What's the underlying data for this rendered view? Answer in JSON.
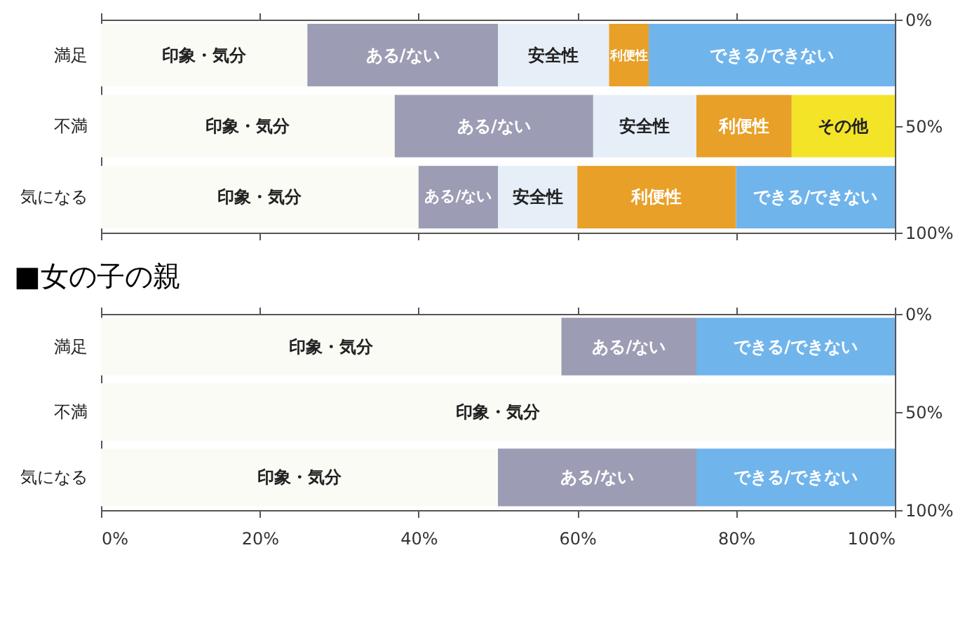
{
  "chart_data": [
    {
      "type": "bar",
      "orientation": "horizontal",
      "stacked": true,
      "categories": [
        "満足",
        "不満",
        "気になる"
      ],
      "series": [
        {
          "name": "印象・気分",
          "color": "#fbfbf6",
          "values": [
            26,
            37,
            40
          ]
        },
        {
          "name": "ある/ない",
          "color": "#9c9cb4",
          "values": [
            24,
            25,
            10
          ]
        },
        {
          "name": "安全性",
          "color": "#e6eef8",
          "values": [
            14,
            13,
            10
          ]
        },
        {
          "name": "利便性",
          "color": "#e8a028",
          "values": [
            5,
            12,
            20
          ]
        },
        {
          "name": "できる/できない",
          "color": "#70b4ec",
          "values": [
            31,
            null,
            20
          ]
        },
        {
          "name": "その他",
          "color": "#f4e428",
          "values": [
            null,
            13,
            null
          ]
        }
      ],
      "xlim": [
        0,
        100
      ],
      "xticks": [
        {
          "value": 0,
          "label": null
        },
        {
          "value": 20,
          "label": null
        },
        {
          "value": 40,
          "label": null
        },
        {
          "value": 60,
          "label": null
        },
        {
          "value": 80,
          "label": null
        },
        {
          "value": 100,
          "label": null
        }
      ],
      "y2lim": [
        100,
        0
      ],
      "y2ticks": [
        {
          "value": 0,
          "label": "0%"
        },
        {
          "value": 50,
          "label": "50%"
        },
        {
          "value": 100,
          "label": "100%"
        }
      ],
      "tick_labels": "y"
    },
    {
      "type": "bar",
      "orientation": "horizontal",
      "stacked": true,
      "title": "■女の子の親",
      "categories": [
        "満足",
        "不満",
        "気になる"
      ],
      "series": [
        {
          "name": "印象・気分",
          "color": "#fbfbf6",
          "values": [
            58,
            100,
            50
          ]
        },
        {
          "name": "ある/ない",
          "color": "#9c9cb4",
          "values": [
            17,
            null,
            25
          ]
        },
        {
          "name": "できる/できない",
          "color": "#70b4ec",
          "values": [
            25,
            null,
            25
          ]
        }
      ],
      "xlim": [
        0,
        100
      ],
      "xticks": [
        {
          "value": 0,
          "label": "0%"
        },
        {
          "value": 20,
          "label": "20%"
        },
        {
          "value": 40,
          "label": "40%"
        },
        {
          "value": 60,
          "label": "60%"
        },
        {
          "value": 80,
          "label": "80%"
        },
        {
          "value": 100,
          "label": "100%"
        }
      ],
      "y2lim": [
        100,
        0
      ],
      "y2ticks": [
        {
          "value": 0,
          "label": "0%"
        },
        {
          "value": 50,
          "label": "50%"
        },
        {
          "value": 100,
          "label": "100%"
        }
      ]
    }
  ]
}
